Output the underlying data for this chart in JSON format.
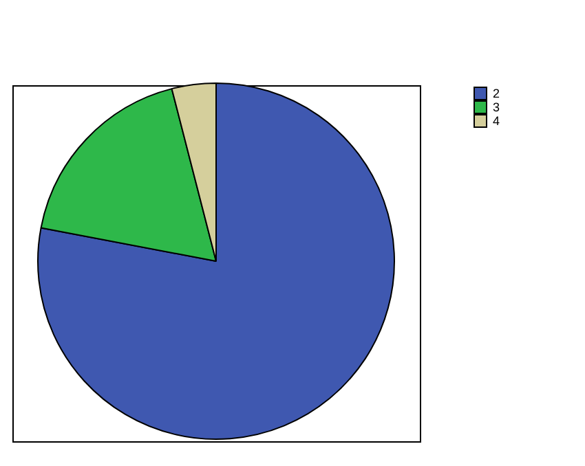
{
  "chart_data": {
    "type": "pie",
    "categories": [
      "2",
      "3",
      "4"
    ],
    "values": [
      78,
      18,
      4
    ],
    "colors": [
      "#3f58b0",
      "#2eb84a",
      "#d5cf9c"
    ],
    "legend": "top right"
  }
}
